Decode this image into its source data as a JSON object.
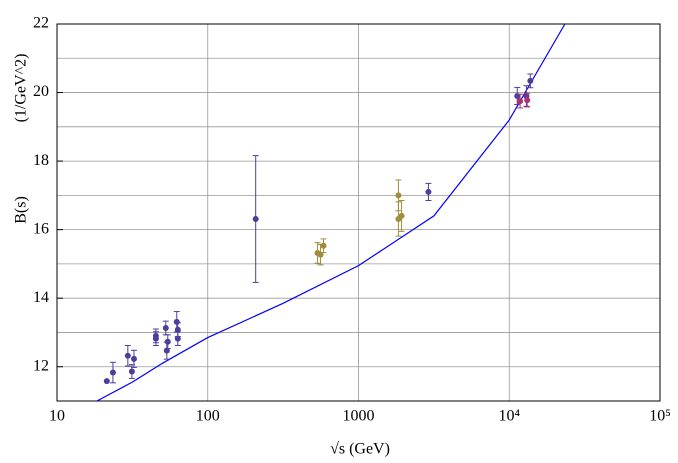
{
  "chart_data": {
    "type": "scatter",
    "x_label": "√s (GeV)",
    "y_label": "B(s)",
    "y_unit": "(1/GeV^2)",
    "log_x": true,
    "grid": true,
    "xlim": [
      10,
      100000
    ],
    "ylim": [
      11,
      22
    ],
    "xticks": [
      10,
      100,
      1000,
      {
        "value": 10000,
        "label": "10⁴"
      },
      {
        "value": 100000,
        "label": "10⁵"
      }
    ],
    "yticks": [
      12,
      14,
      16,
      18,
      20,
      22
    ],
    "minor_grid_y": [
      12,
      13,
      14,
      15,
      16,
      17,
      18,
      19,
      20,
      21,
      22
    ],
    "series": [
      {
        "color": "#4a3f9c",
        "x": [
          21.4,
          23.5,
          29.5,
          31.4,
          32.4,
          45.3,
          45.3,
          52.7,
          53.5,
          54.3,
          62.3,
          63.3,
          63.3,
          208,
          2910,
          11300,
          13000,
          13800
        ],
        "values": [
          11.58,
          11.83,
          12.32,
          11.86,
          12.23,
          12.9,
          12.82,
          13.13,
          12.47,
          12.73,
          13.31,
          13.08,
          12.82,
          16.31,
          17.1,
          19.9,
          19.9,
          20.34
        ],
        "errors": [
          0,
          0.3,
          0.3,
          0.2,
          0.25,
          0.2,
          0.2,
          0.2,
          0.25,
          0.2,
          0.3,
          0.2,
          0.2,
          1.85,
          0.25,
          0.25,
          0.3,
          0.2
        ]
      },
      {
        "color": "#a08c3c",
        "x": [
          535,
          560,
          586,
          1840,
          1840,
          1930
        ],
        "values": [
          15.32,
          15.27,
          15.53,
          17.0,
          16.31,
          16.4
        ],
        "errors": [
          0.3,
          0.3,
          0.2,
          0.45,
          0.5,
          0.45
        ]
      },
      {
        "color": "#b0306e",
        "x": [
          11800,
          13150
        ],
        "values": [
          19.75,
          19.78
        ],
        "errors": [
          0.2,
          0.2
        ]
      }
    ],
    "fit": {
      "color": "#0000ff",
      "x": [
        18.4,
        31.6,
        50,
        100,
        316,
        1000,
        3162,
        10000,
        23400
      ],
      "values": [
        11.0,
        11.55,
        12.1,
        12.85,
        13.85,
        14.95,
        16.4,
        19.2,
        22.0
      ]
    }
  }
}
